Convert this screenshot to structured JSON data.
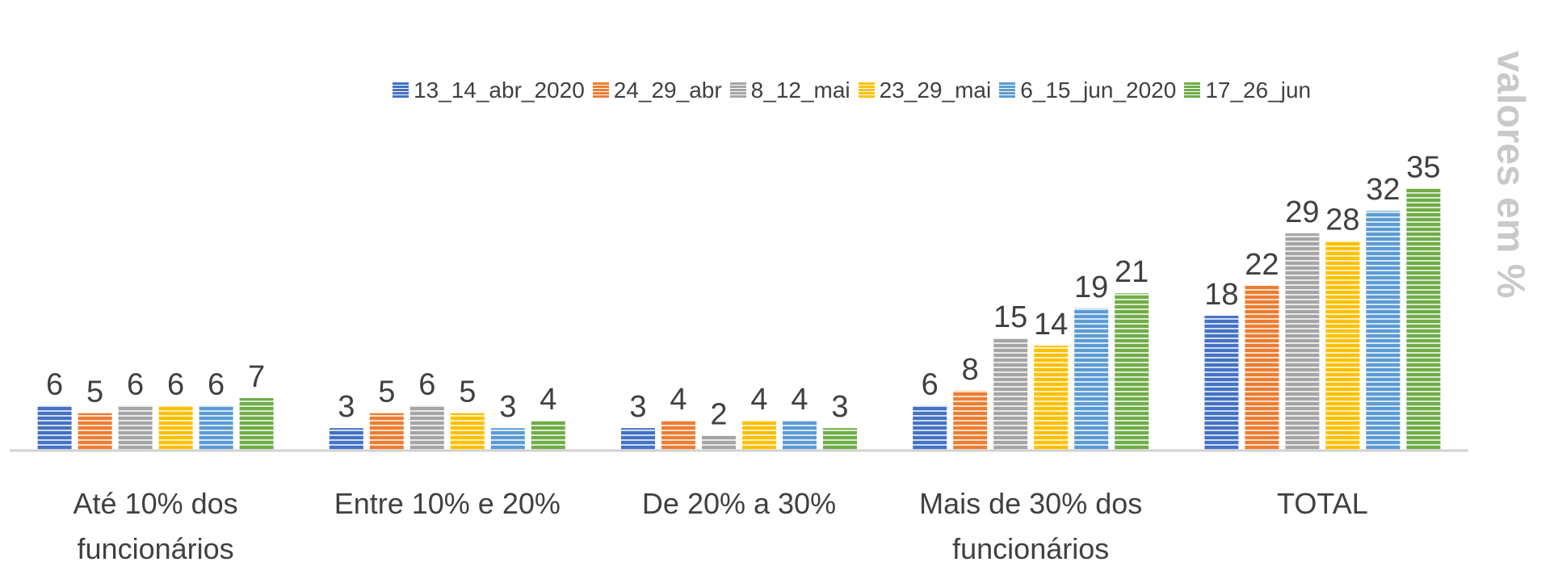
{
  "chart_data": {
    "type": "bar",
    "y_label": "valores em %",
    "categories": [
      "Até 10% dos funcionários",
      "Entre 10% e 20%",
      "De 20% a 30%",
      "Mais de 30% dos funcionários",
      "TOTAL"
    ],
    "series": [
      {
        "name": "13_14_abr_2020",
        "color": "#4472c4",
        "values": [
          6,
          3,
          3,
          6,
          18
        ]
      },
      {
        "name": "24_29_abr",
        "color": "#ed7d31",
        "values": [
          5,
          5,
          4,
          8,
          22
        ]
      },
      {
        "name": "8_12_mai",
        "color": "#a5a5a5",
        "values": [
          6,
          6,
          2,
          15,
          29
        ]
      },
      {
        "name": "23_29_mai",
        "color": "#ffc000",
        "values": [
          6,
          5,
          4,
          14,
          28
        ]
      },
      {
        "name": "6_15_jun_2020",
        "color": "#5b9bd5",
        "values": [
          6,
          3,
          4,
          19,
          32
        ]
      },
      {
        "name": "17_26_jun",
        "color": "#70ad47",
        "values": [
          7,
          4,
          3,
          21,
          35
        ]
      }
    ],
    "ylim": [
      0,
      40
    ],
    "legend": "top",
    "grid": false
  }
}
